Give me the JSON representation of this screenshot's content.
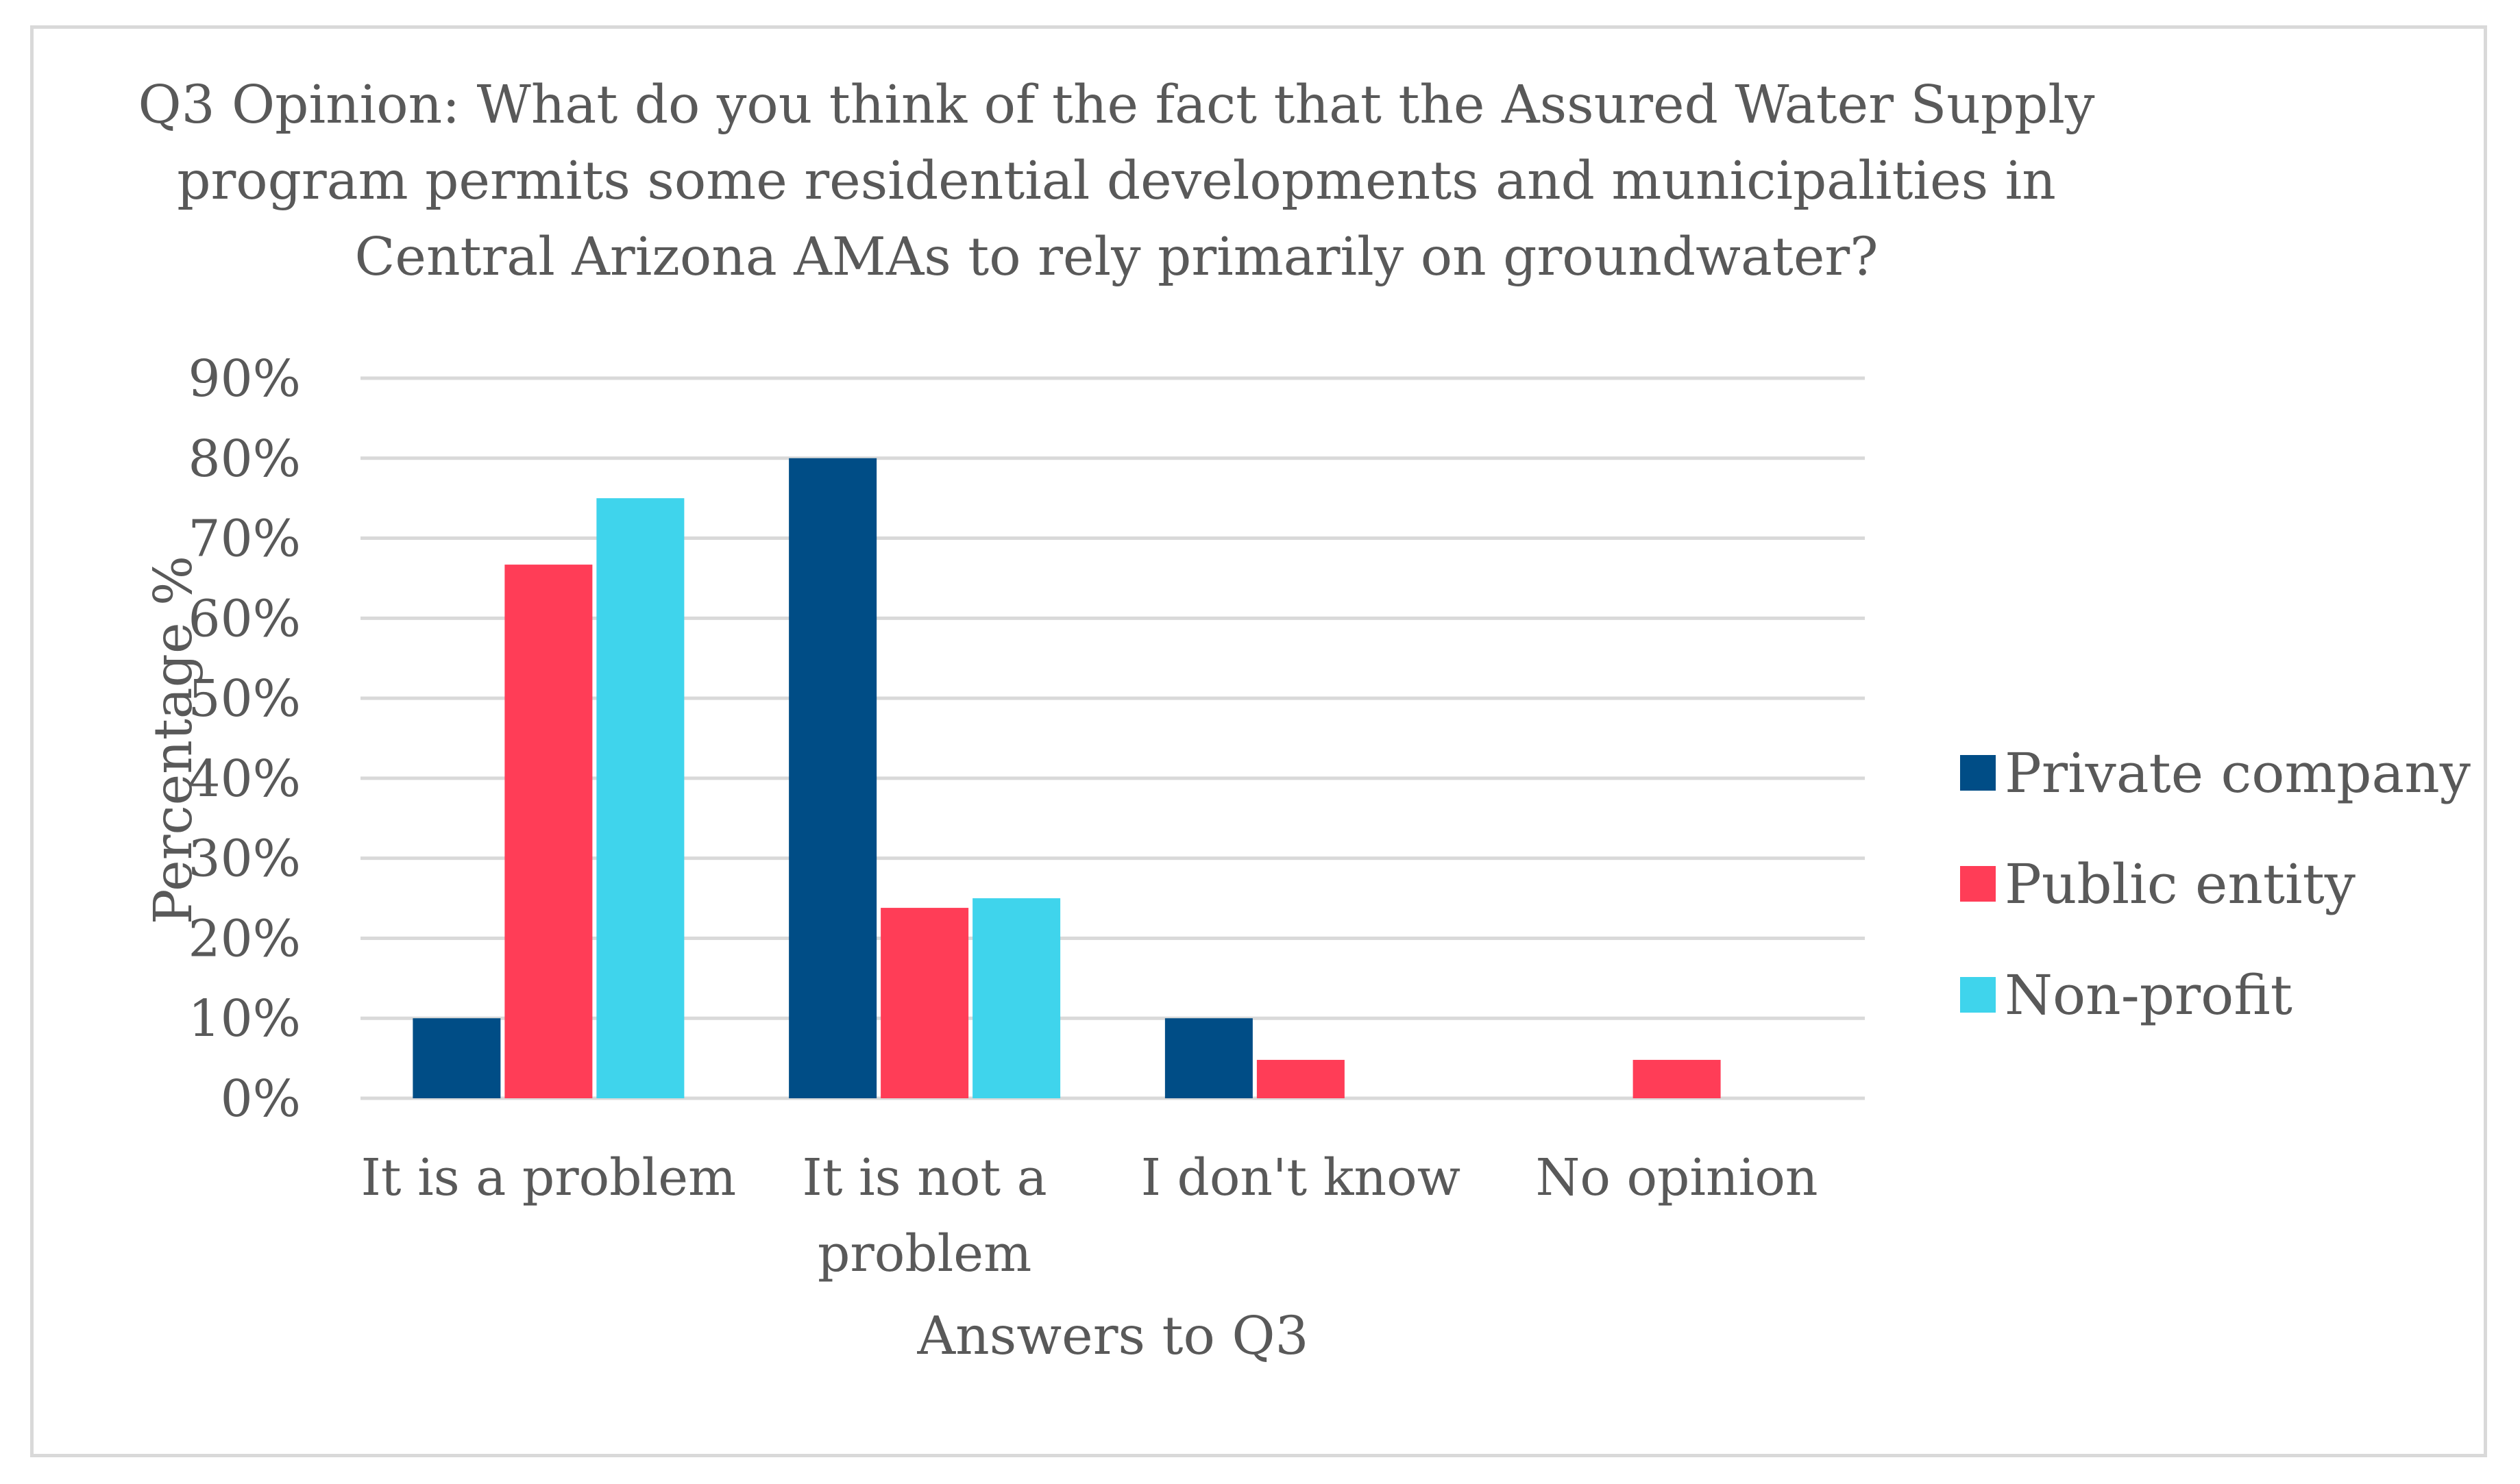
{
  "chart_data": {
    "type": "bar",
    "title": "Q3 Opinion: What do you think of the fact that the Assured Water Supply program permits some residential developments and municipalities in Central Arizona AMAs to rely primarily on groundwater?",
    "title_lines": [
      "Q3 Opinion: What do you think of the fact that the Assured Water Supply",
      "program permits some residential developments and municipalities in",
      "Central Arizona AMAs to rely primarily on groundwater?"
    ],
    "xlabel": "Answers to Q3",
    "ylabel": "Percentage %",
    "categories": [
      "It is a problem",
      "It is not a problem",
      "I don't know",
      "No opinion"
    ],
    "category_lines": [
      [
        "It is a problem"
      ],
      [
        "It is not a",
        "problem"
      ],
      [
        "I don't know"
      ],
      [
        "No opinion"
      ]
    ],
    "series": [
      {
        "name": "Private company",
        "color": "#004d86",
        "values": [
          10,
          80,
          10,
          0
        ]
      },
      {
        "name": "Public entity",
        "color": "#ff3d57",
        "values": [
          66.7,
          23.8,
          4.8,
          4.8
        ]
      },
      {
        "name": "Non-profit",
        "color": "#3fd4ec",
        "values": [
          75,
          25,
          0,
          0
        ]
      }
    ],
    "ylim": [
      0,
      90
    ],
    "yticks": [
      0,
      10,
      20,
      30,
      40,
      50,
      60,
      70,
      80,
      90
    ],
    "ytick_labels": [
      "0%",
      "10%",
      "20%",
      "30%",
      "40%",
      "50%",
      "60%",
      "70%",
      "80%",
      "90%"
    ],
    "grid": true,
    "legend_position": "right"
  }
}
